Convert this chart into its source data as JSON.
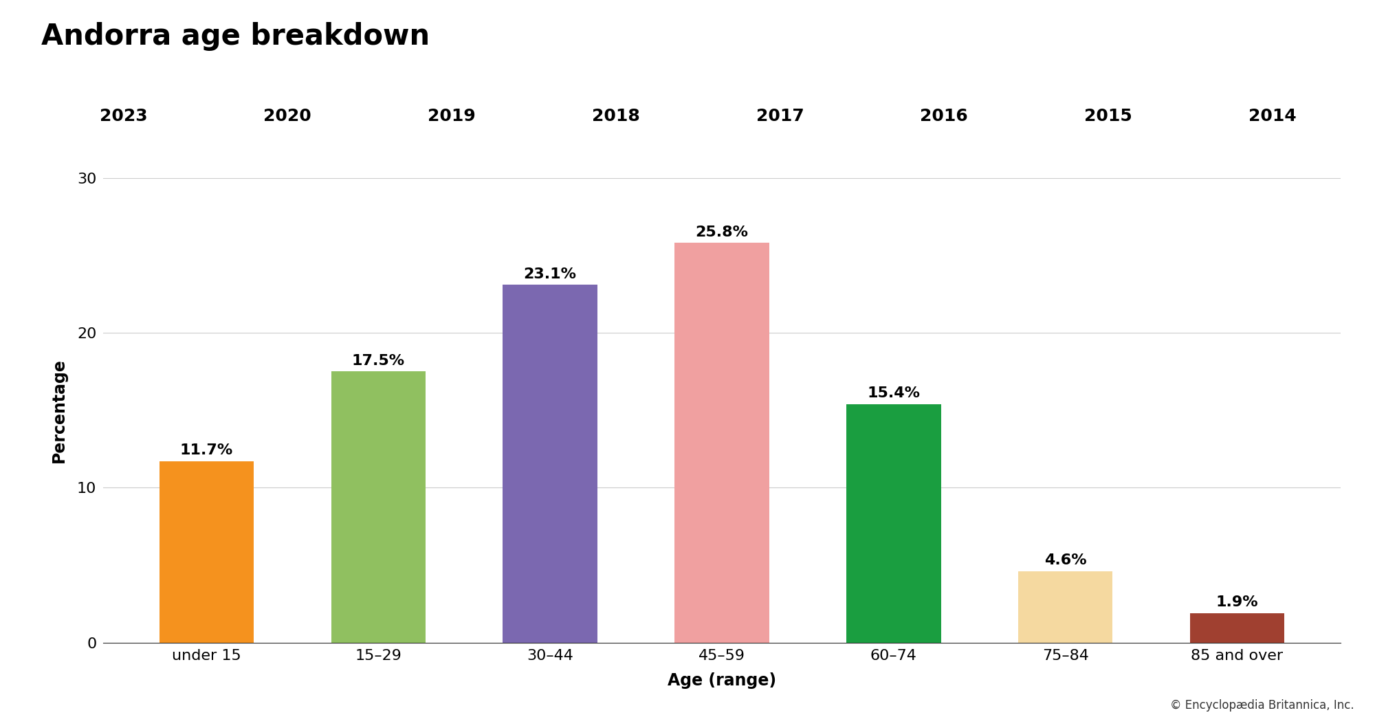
{
  "title": "Andorra age breakdown",
  "categories": [
    "under 15",
    "15–29",
    "30–44",
    "45–59",
    "60–74",
    "75–84",
    "85 and over"
  ],
  "values": [
    11.7,
    17.5,
    23.1,
    25.8,
    15.4,
    4.6,
    1.9
  ],
  "labels": [
    "11.7%",
    "17.5%",
    "23.1%",
    "25.8%",
    "15.4%",
    "4.6%",
    "1.9%"
  ],
  "bar_colors": [
    "#F5921E",
    "#90C060",
    "#7B68B0",
    "#F0A0A0",
    "#1A9E40",
    "#F5D9A0",
    "#A04030"
  ],
  "xlabel": "Age (range)",
  "ylabel": "Percentage",
  "ylim": [
    0,
    30
  ],
  "yticks": [
    0,
    10,
    20,
    30
  ],
  "tab_years": [
    "2023",
    "2020",
    "2019",
    "2018",
    "2017",
    "2016",
    "2015",
    "2014"
  ],
  "active_tab": "2023",
  "tab_bg_color": "#E0E0E0",
  "active_tab_bg": "#FFFFFF",
  "background_color": "#FFFFFF",
  "plot_bg_color": "#FFFFFF",
  "copyright_text": "© Encyclopædia Britannica, Inc.",
  "title_fontsize": 30,
  "axis_label_fontsize": 17,
  "tick_fontsize": 16,
  "tab_fontsize": 18,
  "bar_label_fontsize": 16,
  "bar_width": 0.55
}
